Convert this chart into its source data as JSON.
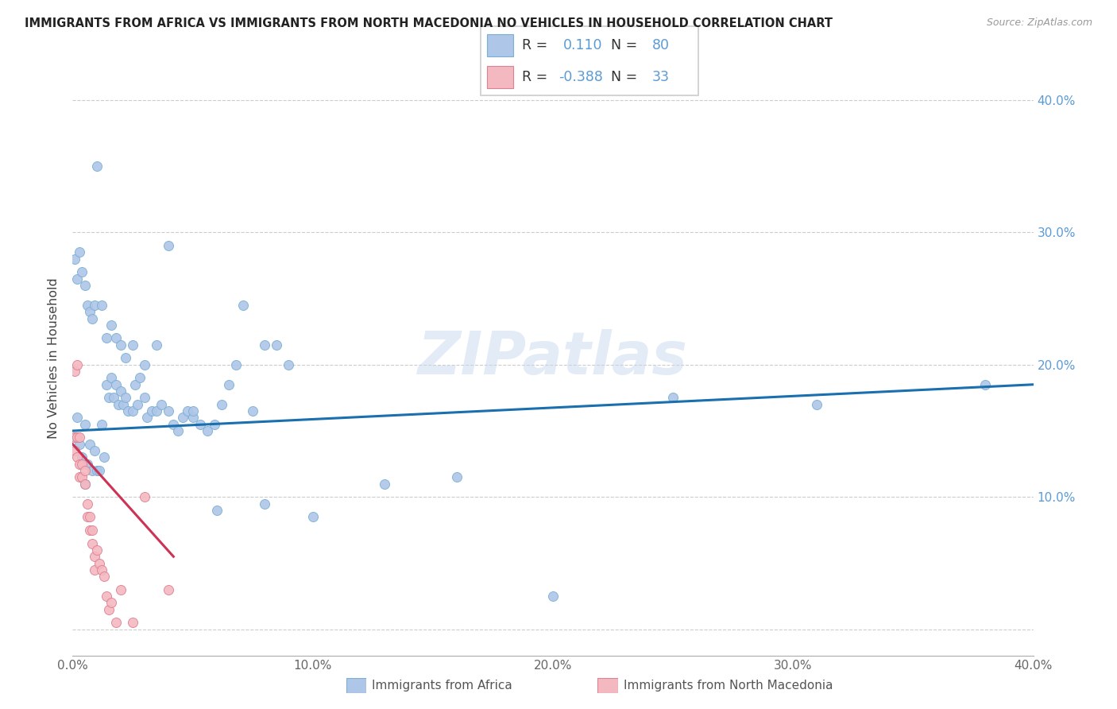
{
  "title": "IMMIGRANTS FROM AFRICA VS IMMIGRANTS FROM NORTH MACEDONIA NO VEHICLES IN HOUSEHOLD CORRELATION CHART",
  "source": "Source: ZipAtlas.com",
  "ylabel": "No Vehicles in Household",
  "xlim": [
    0.0,
    0.4
  ],
  "ylim": [
    -0.02,
    0.43
  ],
  "watermark": "ZIPatlas",
  "africa_color": "#aec6e8",
  "africa_edge": "#7bafd4",
  "africa_line": "#1a6faf",
  "macedonia_color": "#f4b8c1",
  "macedonia_edge": "#e08090",
  "macedonia_line": "#cc3355",
  "africa_label": "Immigrants from Africa",
  "macedonia_label": "Immigrants from North Macedonia",
  "africa_R": "0.110",
  "africa_N": "80",
  "macedonia_R": "-0.388",
  "macedonia_N": "33",
  "africa_x": [
    0.001,
    0.002,
    0.003,
    0.004,
    0.005,
    0.005,
    0.006,
    0.007,
    0.008,
    0.009,
    0.01,
    0.011,
    0.012,
    0.013,
    0.014,
    0.015,
    0.016,
    0.017,
    0.018,
    0.019,
    0.02,
    0.021,
    0.022,
    0.023,
    0.025,
    0.026,
    0.027,
    0.028,
    0.03,
    0.031,
    0.033,
    0.035,
    0.037,
    0.04,
    0.042,
    0.044,
    0.046,
    0.048,
    0.05,
    0.053,
    0.056,
    0.059,
    0.062,
    0.065,
    0.068,
    0.071,
    0.075,
    0.08,
    0.085,
    0.09,
    0.001,
    0.002,
    0.003,
    0.004,
    0.005,
    0.006,
    0.007,
    0.008,
    0.009,
    0.01,
    0.012,
    0.014,
    0.016,
    0.018,
    0.02,
    0.022,
    0.025,
    0.03,
    0.035,
    0.04,
    0.05,
    0.06,
    0.08,
    0.1,
    0.13,
    0.16,
    0.2,
    0.25,
    0.31,
    0.38
  ],
  "africa_y": [
    0.145,
    0.16,
    0.14,
    0.13,
    0.11,
    0.155,
    0.125,
    0.14,
    0.12,
    0.135,
    0.12,
    0.12,
    0.155,
    0.13,
    0.185,
    0.175,
    0.19,
    0.175,
    0.185,
    0.17,
    0.18,
    0.17,
    0.175,
    0.165,
    0.165,
    0.185,
    0.17,
    0.19,
    0.175,
    0.16,
    0.165,
    0.165,
    0.17,
    0.165,
    0.155,
    0.15,
    0.16,
    0.165,
    0.16,
    0.155,
    0.15,
    0.155,
    0.17,
    0.185,
    0.2,
    0.245,
    0.165,
    0.215,
    0.215,
    0.2,
    0.28,
    0.265,
    0.285,
    0.27,
    0.26,
    0.245,
    0.24,
    0.235,
    0.245,
    0.35,
    0.245,
    0.22,
    0.23,
    0.22,
    0.215,
    0.205,
    0.215,
    0.2,
    0.215,
    0.29,
    0.165,
    0.09,
    0.095,
    0.085,
    0.11,
    0.115,
    0.025,
    0.175,
    0.17,
    0.185
  ],
  "macedonia_x": [
    0.001,
    0.001,
    0.001,
    0.002,
    0.002,
    0.002,
    0.003,
    0.003,
    0.003,
    0.004,
    0.004,
    0.005,
    0.005,
    0.006,
    0.006,
    0.007,
    0.007,
    0.008,
    0.008,
    0.009,
    0.009,
    0.01,
    0.011,
    0.012,
    0.013,
    0.014,
    0.015,
    0.016,
    0.018,
    0.02,
    0.025,
    0.03,
    0.04
  ],
  "macedonia_y": [
    0.195,
    0.145,
    0.135,
    0.2,
    0.145,
    0.13,
    0.145,
    0.125,
    0.115,
    0.125,
    0.115,
    0.12,
    0.11,
    0.095,
    0.085,
    0.085,
    0.075,
    0.075,
    0.065,
    0.055,
    0.045,
    0.06,
    0.05,
    0.045,
    0.04,
    0.025,
    0.015,
    0.02,
    0.005,
    0.03,
    0.005,
    0.1,
    0.03
  ]
}
